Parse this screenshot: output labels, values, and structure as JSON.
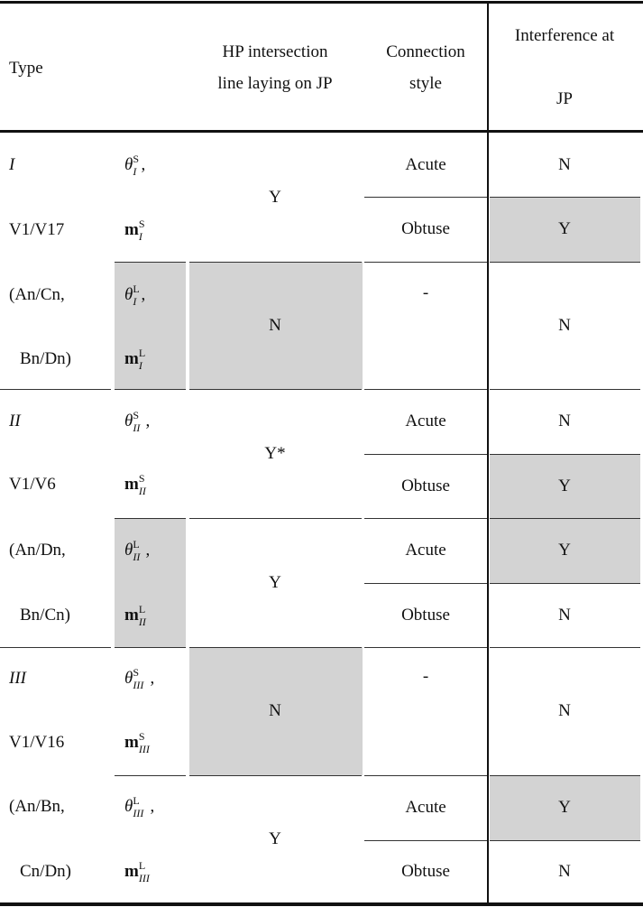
{
  "header": {
    "type": "Type",
    "hp_lines": [
      "HP intersection",
      "line laying on JP"
    ],
    "connection_lines": [
      "Connection",
      "style"
    ],
    "interference_lines": [
      "Interference at",
      "JP"
    ]
  },
  "shade_color": "#d3d3d3",
  "type_labels": [
    "I",
    "V1/V17",
    "(An/Cn,",
    "Bn/Dn)",
    "II",
    "V1/V6",
    "(An/Dn,",
    "Bn/Cn)",
    "III",
    "V1/V16",
    "(An/Bn,",
    "Cn/Dn)"
  ],
  "parameters": [
    {
      "symbol": "θ",
      "sub": "I",
      "sup": "S",
      "suffix": ","
    },
    {
      "symbol": "m",
      "sub": "I",
      "sup": "S",
      "suffix": ""
    },
    {
      "symbol": "θ",
      "sub": "I",
      "sup": "L",
      "suffix": ","
    },
    {
      "symbol": "m",
      "sub": "I",
      "sup": "L",
      "suffix": ""
    },
    {
      "symbol": "θ",
      "sub": "II",
      "sup": "S",
      "suffix": ","
    },
    {
      "symbol": "m",
      "sub": "II",
      "sup": "S",
      "suffix": ""
    },
    {
      "symbol": "θ",
      "sub": "II",
      "sup": "L",
      "suffix": ","
    },
    {
      "symbol": "m",
      "sub": "II",
      "sup": "L",
      "suffix": ""
    },
    {
      "symbol": "θ",
      "sub": "III",
      "sup": "S",
      "suffix": ","
    },
    {
      "symbol": "m",
      "sub": "III",
      "sup": "S",
      "suffix": ""
    },
    {
      "symbol": "θ",
      "sub": "III",
      "sup": "L",
      "suffix": ","
    },
    {
      "symbol": "m",
      "sub": "III",
      "sup": "L",
      "suffix": ""
    }
  ],
  "parameter_shaded": [
    false,
    false,
    true,
    true,
    false,
    false,
    true,
    true,
    false,
    false,
    false,
    false
  ],
  "hp_intersection": [
    {
      "value": "Y",
      "shaded": false
    },
    {
      "value": "N",
      "shaded": true
    },
    {
      "value": "Y*",
      "shaded": false
    },
    {
      "value": "Y",
      "shaded": false
    },
    {
      "value": "N",
      "shaded": true
    },
    {
      "value": "Y",
      "shaded": false
    }
  ],
  "connection_style": [
    {
      "value": "Acute"
    },
    {
      "value": "Obtuse"
    },
    {
      "value": "-"
    },
    {
      "value": "Acute"
    },
    {
      "value": "Obtuse"
    },
    {
      "value": "Acute"
    },
    {
      "value": "Obtuse"
    },
    {
      "value": "-"
    },
    {
      "value": "Acute"
    },
    {
      "value": "Obtuse"
    }
  ],
  "interference": [
    {
      "value": "N",
      "shaded": false
    },
    {
      "value": "Y",
      "shaded": true
    },
    {
      "value": "N",
      "shaded": false
    },
    {
      "value": "N",
      "shaded": false
    },
    {
      "value": "Y",
      "shaded": true
    },
    {
      "value": "Y",
      "shaded": true
    },
    {
      "value": "N",
      "shaded": false
    },
    {
      "value": "N",
      "shaded": false
    },
    {
      "value": "Y",
      "shaded": true
    },
    {
      "value": "N",
      "shaded": false
    }
  ]
}
